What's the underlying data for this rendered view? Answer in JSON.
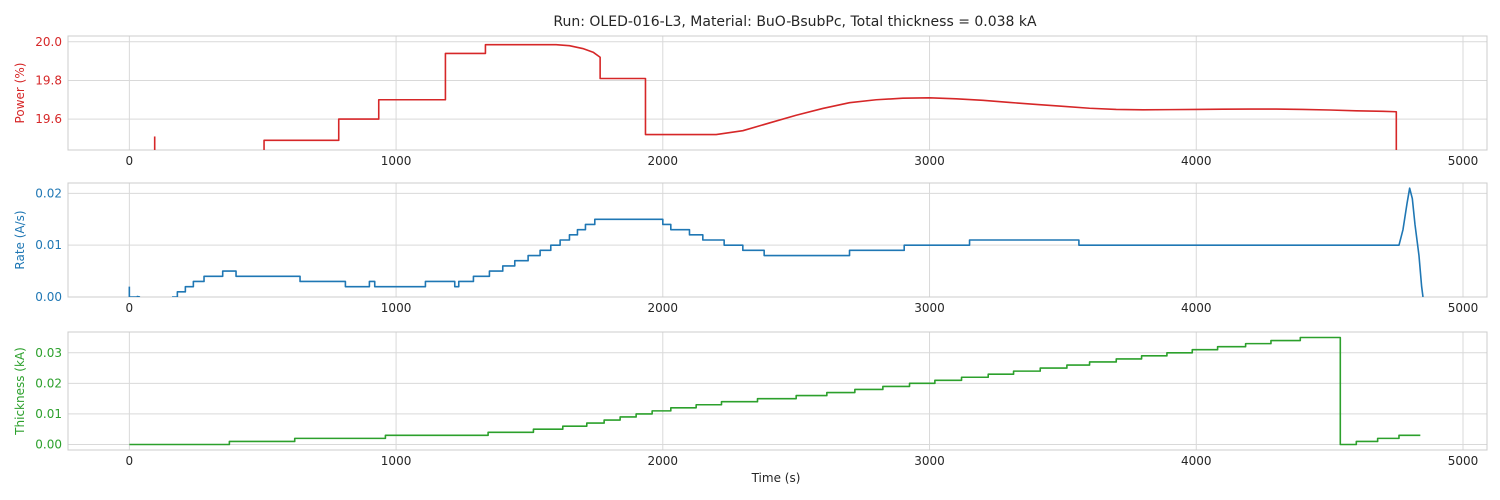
{
  "figure": {
    "title": "Run: OLED-016-L3, Material: BuO-BsubPc, Total thickness = 0.038 kA",
    "xlabel": "Time (s)"
  },
  "chart_data": [
    {
      "type": "line",
      "ylabel": "Power (%)",
      "color": "#d62728",
      "xlim": [
        -230,
        5090
      ],
      "ylim": [
        19.44,
        20.03
      ],
      "xticks": [
        "0",
        "1000",
        "2000",
        "3000",
        "4000",
        "5000"
      ],
      "yticks": [
        "19.6",
        "19.8",
        "20.0"
      ],
      "grid": true,
      "segments": [
        [
          [
            95,
            19.44
          ],
          [
            95,
            19.51
          ]
        ],
        [
          [
            505,
            19.44
          ],
          [
            505,
            19.49
          ],
          [
            785,
            19.49
          ],
          [
            785,
            19.6
          ],
          [
            935,
            19.6
          ],
          [
            935,
            19.7
          ],
          [
            1185,
            19.7
          ],
          [
            1185,
            19.94
          ],
          [
            1335,
            19.94
          ],
          [
            1335,
            19.985
          ],
          [
            1600,
            19.985
          ],
          [
            1650,
            19.98
          ],
          [
            1700,
            19.965
          ],
          [
            1740,
            19.945
          ],
          [
            1765,
            19.92
          ],
          [
            1765,
            19.81
          ],
          [
            1935,
            19.81
          ],
          [
            1935,
            19.52
          ],
          [
            2000,
            19.52
          ],
          [
            2100,
            19.52
          ],
          [
            2200,
            19.52
          ],
          [
            2300,
            19.54
          ],
          [
            2400,
            19.58
          ],
          [
            2500,
            19.62
          ],
          [
            2600,
            19.655
          ],
          [
            2700,
            19.685
          ],
          [
            2800,
            19.7
          ],
          [
            2900,
            19.708
          ],
          [
            3000,
            19.71
          ],
          [
            3100,
            19.705
          ],
          [
            3200,
            19.697
          ],
          [
            3300,
            19.686
          ],
          [
            3400,
            19.676
          ],
          [
            3500,
            19.666
          ],
          [
            3600,
            19.656
          ],
          [
            3700,
            19.65
          ],
          [
            3800,
            19.648
          ],
          [
            3900,
            19.649
          ],
          [
            4000,
            19.65
          ],
          [
            4100,
            19.651
          ],
          [
            4200,
            19.652
          ],
          [
            4300,
            19.652
          ],
          [
            4400,
            19.65
          ],
          [
            4500,
            19.647
          ],
          [
            4600,
            19.643
          ],
          [
            4700,
            19.64
          ],
          [
            4750,
            19.638
          ],
          [
            4750,
            19.44
          ]
        ]
      ]
    },
    {
      "type": "line",
      "ylabel": "Rate (A/s)",
      "color": "#1f77b4",
      "xlim": [
        -230,
        5090
      ],
      "ylim": [
        0,
        0.022
      ],
      "xticks": [
        "0",
        "1000",
        "2000",
        "3000",
        "4000",
        "5000"
      ],
      "yticks": [
        "0.00",
        "0.01",
        "0.02"
      ],
      "grid": true,
      "segments": [
        [
          [
            0,
            0.002
          ],
          [
            0,
            0
          ],
          [
            30,
            0
          ],
          [
            30,
            0.0001
          ],
          [
            40,
            0
          ]
        ],
        [
          [
            160,
            0
          ],
          [
            180,
            0
          ],
          [
            180,
            0.001
          ],
          [
            210,
            0.001
          ],
          [
            210,
            0.002
          ],
          [
            240,
            0.002
          ],
          [
            240,
            0.003
          ],
          [
            280,
            0.003
          ],
          [
            280,
            0.004
          ],
          [
            350,
            0.004
          ],
          [
            350,
            0.005
          ],
          [
            400,
            0.005
          ],
          [
            400,
            0.004
          ],
          [
            640,
            0.004
          ],
          [
            640,
            0.003
          ],
          [
            810,
            0.003
          ],
          [
            810,
            0.002
          ],
          [
            900,
            0.002
          ],
          [
            900,
            0.003
          ],
          [
            920,
            0.003
          ],
          [
            920,
            0.002
          ],
          [
            1110,
            0.002
          ],
          [
            1110,
            0.003
          ],
          [
            1220,
            0.003
          ],
          [
            1220,
            0.002
          ],
          [
            1235,
            0.002
          ],
          [
            1235,
            0.003
          ],
          [
            1290,
            0.003
          ],
          [
            1290,
            0.004
          ],
          [
            1350,
            0.004
          ],
          [
            1350,
            0.005
          ],
          [
            1400,
            0.005
          ],
          [
            1400,
            0.006
          ],
          [
            1445,
            0.006
          ],
          [
            1445,
            0.007
          ],
          [
            1495,
            0.007
          ],
          [
            1495,
            0.008
          ],
          [
            1540,
            0.008
          ],
          [
            1540,
            0.009
          ],
          [
            1580,
            0.009
          ],
          [
            1580,
            0.01
          ],
          [
            1615,
            0.01
          ],
          [
            1615,
            0.011
          ],
          [
            1650,
            0.011
          ],
          [
            1650,
            0.012
          ],
          [
            1680,
            0.012
          ],
          [
            1680,
            0.013
          ],
          [
            1710,
            0.013
          ],
          [
            1710,
            0.014
          ],
          [
            1745,
            0.014
          ],
          [
            1745,
            0.015
          ],
          [
            2000,
            0.015
          ],
          [
            2000,
            0.014
          ],
          [
            2030,
            0.014
          ],
          [
            2030,
            0.013
          ],
          [
            2100,
            0.013
          ],
          [
            2100,
            0.012
          ],
          [
            2150,
            0.012
          ],
          [
            2150,
            0.011
          ],
          [
            2230,
            0.011
          ],
          [
            2230,
            0.01
          ],
          [
            2300,
            0.01
          ],
          [
            2300,
            0.009
          ],
          [
            2380,
            0.009
          ],
          [
            2380,
            0.008
          ],
          [
            2700,
            0.008
          ],
          [
            2700,
            0.009
          ],
          [
            2905,
            0.009
          ],
          [
            2905,
            0.01
          ],
          [
            3150,
            0.01
          ],
          [
            3150,
            0.011
          ],
          [
            3560,
            0.011
          ],
          [
            3560,
            0.01
          ],
          [
            4760,
            0.01
          ],
          [
            4775,
            0.013
          ],
          [
            4790,
            0.018
          ],
          [
            4800,
            0.021
          ],
          [
            4810,
            0.019
          ],
          [
            4820,
            0.014
          ],
          [
            4835,
            0.008
          ],
          [
            4845,
            0.002
          ],
          [
            4850,
            0
          ]
        ]
      ]
    },
    {
      "type": "line",
      "ylabel": "Thickness (kA)",
      "color": "#2ca02c",
      "xlim": [
        -230,
        5090
      ],
      "ylim": [
        -0.0018,
        0.0368
      ],
      "xticks": [
        "0",
        "1000",
        "2000",
        "3000",
        "4000",
        "5000"
      ],
      "yticks": [
        "0.00",
        "0.01",
        "0.02",
        "0.03"
      ],
      "grid": true,
      "segments": [
        [
          [
            0,
            0
          ],
          [
            375,
            0
          ],
          [
            375,
            0.001
          ],
          [
            620,
            0.001
          ],
          [
            620,
            0.002
          ],
          [
            960,
            0.002
          ],
          [
            960,
            0.003
          ],
          [
            1345,
            0.003
          ],
          [
            1345,
            0.004
          ],
          [
            1515,
            0.004
          ],
          [
            1515,
            0.005
          ],
          [
            1625,
            0.005
          ],
          [
            1625,
            0.006
          ],
          [
            1715,
            0.006
          ],
          [
            1715,
            0.007
          ],
          [
            1780,
            0.007
          ],
          [
            1780,
            0.008
          ],
          [
            1840,
            0.008
          ],
          [
            1840,
            0.009
          ],
          [
            1900,
            0.009
          ],
          [
            1900,
            0.01
          ],
          [
            1960,
            0.01
          ],
          [
            1960,
            0.011
          ],
          [
            2030,
            0.011
          ],
          [
            2030,
            0.012
          ],
          [
            2125,
            0.012
          ],
          [
            2125,
            0.013
          ],
          [
            2220,
            0.013
          ],
          [
            2220,
            0.014
          ],
          [
            2355,
            0.014
          ],
          [
            2355,
            0.015
          ],
          [
            2500,
            0.015
          ],
          [
            2500,
            0.016
          ],
          [
            2615,
            0.016
          ],
          [
            2615,
            0.017
          ],
          [
            2720,
            0.017
          ],
          [
            2720,
            0.018
          ],
          [
            2825,
            0.018
          ],
          [
            2825,
            0.019
          ],
          [
            2925,
            0.019
          ],
          [
            2925,
            0.02
          ],
          [
            3020,
            0.02
          ],
          [
            3020,
            0.021
          ],
          [
            3120,
            0.021
          ],
          [
            3120,
            0.022
          ],
          [
            3220,
            0.022
          ],
          [
            3220,
            0.023
          ],
          [
            3315,
            0.023
          ],
          [
            3315,
            0.024
          ],
          [
            3415,
            0.024
          ],
          [
            3415,
            0.025
          ],
          [
            3515,
            0.025
          ],
          [
            3515,
            0.026
          ],
          [
            3600,
            0.026
          ],
          [
            3600,
            0.027
          ],
          [
            3700,
            0.027
          ],
          [
            3700,
            0.028
          ],
          [
            3795,
            0.028
          ],
          [
            3795,
            0.029
          ],
          [
            3890,
            0.029
          ],
          [
            3890,
            0.03
          ],
          [
            3985,
            0.03
          ],
          [
            3985,
            0.031
          ],
          [
            4080,
            0.031
          ],
          [
            4080,
            0.032
          ],
          [
            4185,
            0.032
          ],
          [
            4185,
            0.033
          ],
          [
            4280,
            0.033
          ],
          [
            4280,
            0.034
          ],
          [
            4390,
            0.034
          ],
          [
            4390,
            0.035
          ],
          [
            4540,
            0.035
          ],
          [
            4540,
            0
          ],
          [
            4600,
            0
          ],
          [
            4600,
            0.001
          ],
          [
            4680,
            0.001
          ],
          [
            4680,
            0.002
          ],
          [
            4760,
            0.002
          ],
          [
            4760,
            0.003
          ],
          [
            4840,
            0.003
          ]
        ]
      ]
    }
  ]
}
